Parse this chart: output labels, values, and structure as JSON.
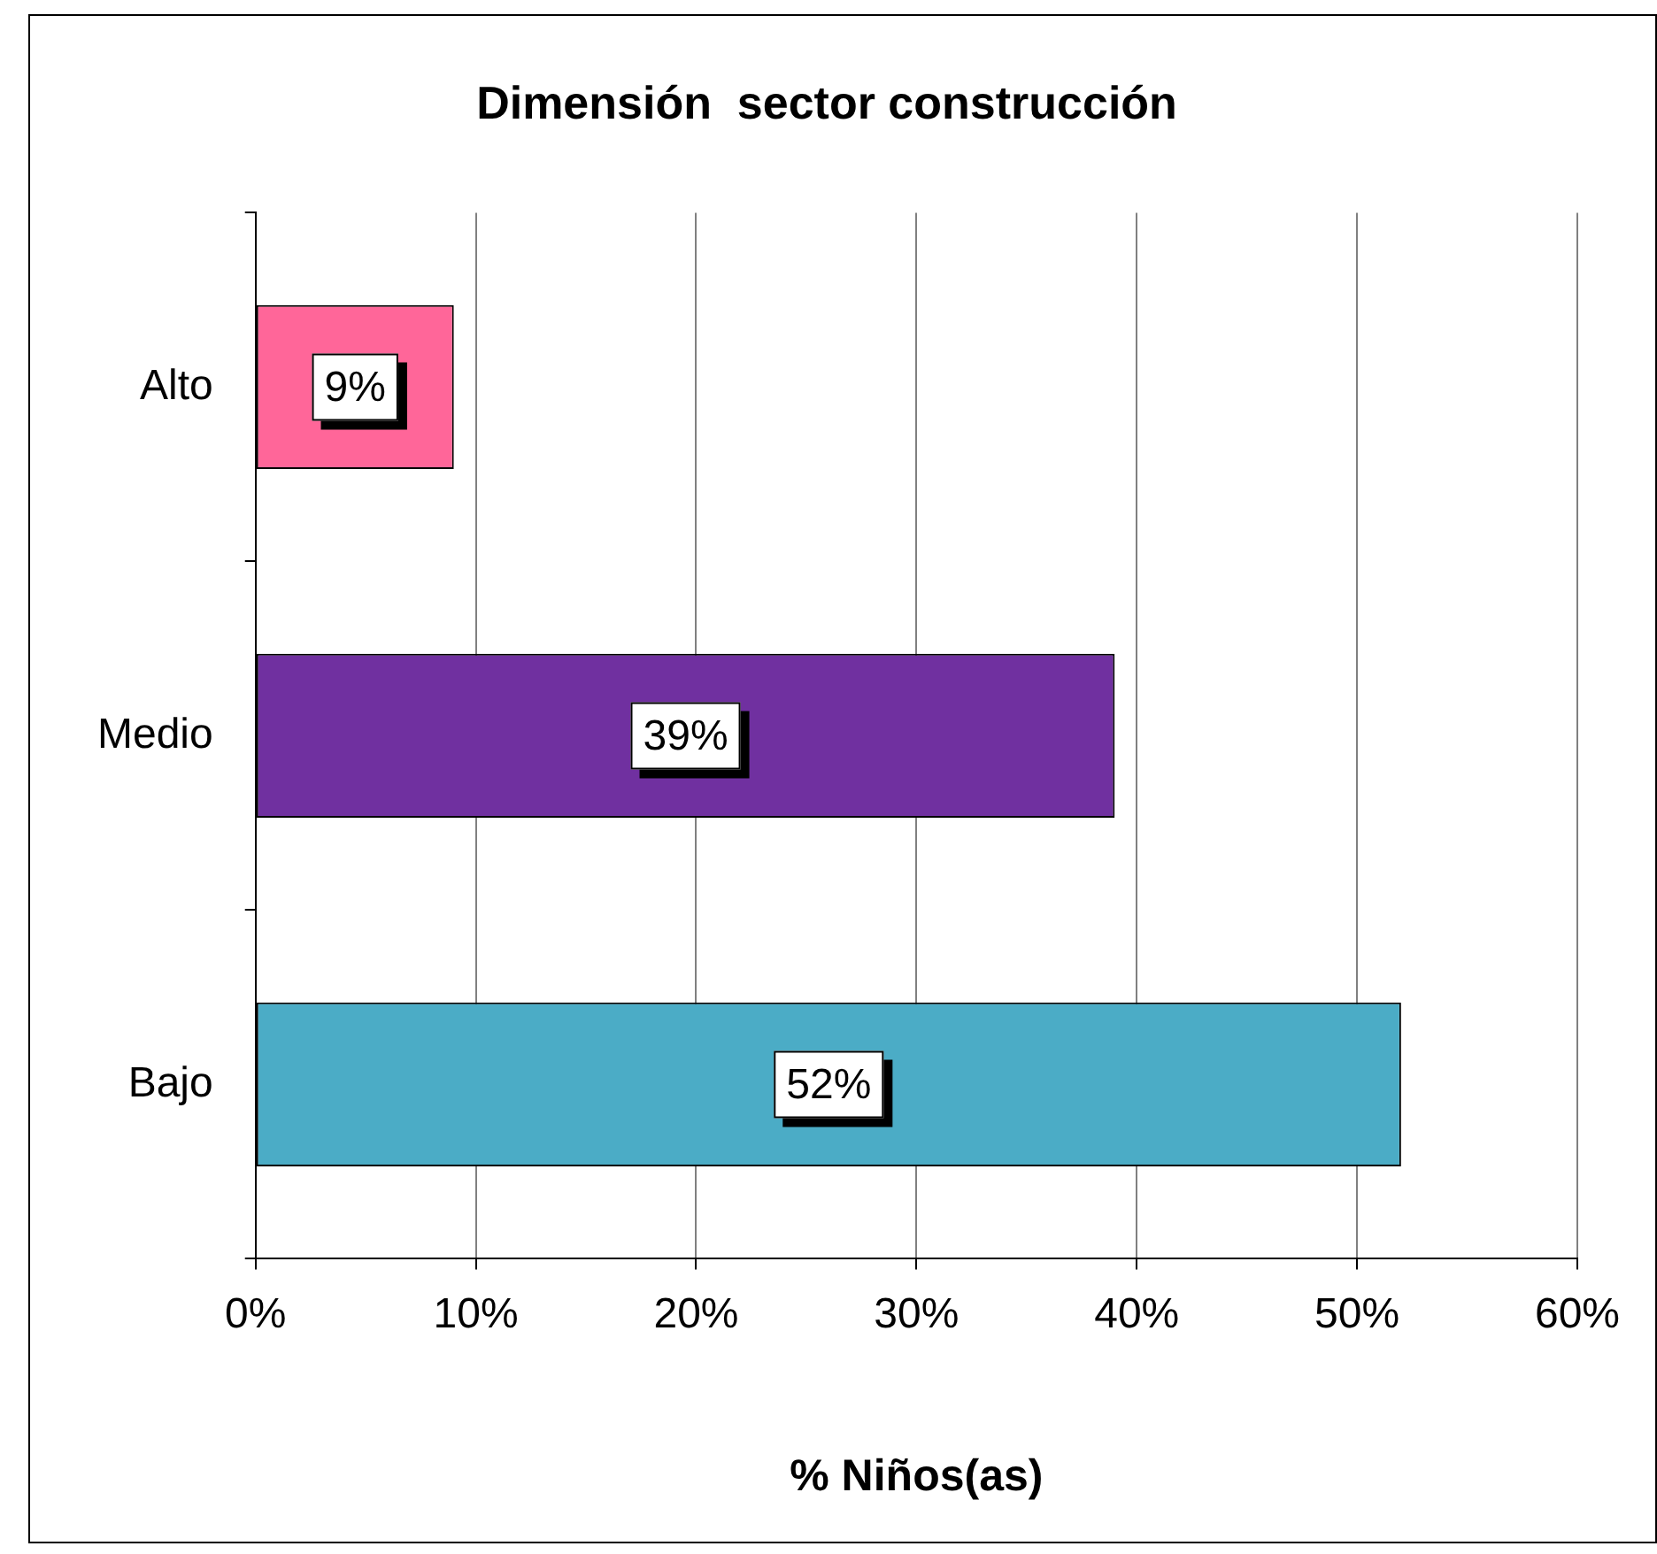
{
  "chart_data": {
    "type": "bar",
    "orientation": "horizontal",
    "title": "Dimensión  sector construcción",
    "xlabel": "% Niños(as)",
    "categories": [
      "Alto",
      "Medio",
      "Bajo"
    ],
    "values": [
      9,
      39,
      52
    ],
    "colors": [
      "#ff6699",
      "#7030a0",
      "#4bacc6"
    ],
    "value_labels": [
      "9%",
      "39%",
      "52%"
    ],
    "xlim": [
      0,
      60
    ],
    "xticks": [
      {
        "value": 0,
        "label": "0%"
      },
      {
        "value": 10,
        "label": "10%"
      },
      {
        "value": 20,
        "label": "20%"
      },
      {
        "value": 30,
        "label": "30%"
      },
      {
        "value": 40,
        "label": "40%"
      },
      {
        "value": 50,
        "label": "50%"
      },
      {
        "value": 60,
        "label": "60%"
      }
    ],
    "grid": "x",
    "legend": false
  }
}
